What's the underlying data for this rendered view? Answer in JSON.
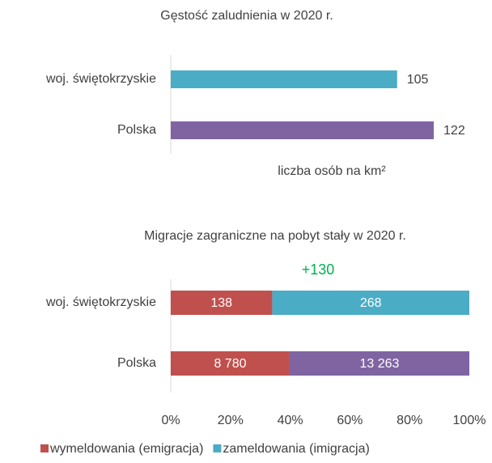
{
  "chart_data": [
    {
      "type": "hbar",
      "title": "Gęstość zaludnienia w 2020 r.",
      "x_label": "liczba osób na km²",
      "categories": [
        "woj. świętokrzyskie",
        "Polska"
      ],
      "values": [
        105,
        122
      ],
      "colors": [
        "#4bacc6",
        "#8064a2"
      ],
      "xlim": [
        0,
        140
      ]
    },
    {
      "type": "hbar_stacked_percent",
      "title": "Migracje zagraniczne na pobyt stały w 2020 r.",
      "annotation": "+130",
      "annotation_color": "#00b050",
      "categories": [
        "woj. świętokrzyskie",
        "Polska"
      ],
      "series": [
        {
          "name": "wymeldowania (emigracja)",
          "color": "#c0504d",
          "colors": [
            "#c0504d",
            "#c0504d"
          ],
          "values": [
            138,
            8780
          ],
          "value_labels": [
            "138",
            "8 780"
          ]
        },
        {
          "name": "zameldowania (imigracja)",
          "color": "#4bacc6",
          "colors": [
            "#4bacc6",
            "#8064a2"
          ],
          "values": [
            268,
            13263
          ],
          "value_labels": [
            "268",
            "13 263"
          ]
        }
      ],
      "xlim": [
        0,
        100
      ],
      "xticks": [
        {
          "value": 0,
          "label": "0%"
        },
        {
          "value": 20,
          "label": "20%"
        },
        {
          "value": 40,
          "label": "40%"
        },
        {
          "value": 60,
          "label": "60%"
        },
        {
          "value": 80,
          "label": "80%"
        },
        {
          "value": 100,
          "label": "100%"
        }
      ]
    }
  ]
}
